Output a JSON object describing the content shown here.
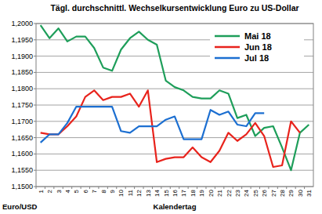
{
  "chart_data": {
    "type": "line",
    "title": "Tägl. durchschnittl. Wechselkursentwicklung Euro zu US-Dollar",
    "x_label": "Kalendertag",
    "y_label": "Euro/USD",
    "categories": [
      "1",
      "2",
      "3",
      "4",
      "5",
      "6",
      "7",
      "8",
      "9",
      "10",
      "11",
      "12",
      "13",
      "14",
      "15",
      "16",
      "17",
      "18",
      "19",
      "20",
      "21",
      "22",
      "23",
      "24",
      "25",
      "26",
      "27",
      "28",
      "29",
      "30",
      "31"
    ],
    "series": [
      {
        "name": "Mai 18",
        "color": "#1e9e5a",
        "values": [
          1.1995,
          1.1955,
          1.1985,
          1.1945,
          1.196,
          1.196,
          1.1925,
          1.1865,
          1.1855,
          1.192,
          1.1955,
          1.1975,
          1.195,
          1.1935,
          1.1825,
          1.1805,
          1.1795,
          1.1775,
          1.177,
          1.177,
          1.1795,
          1.1785,
          1.171,
          1.172,
          1.1655,
          1.168,
          1.1685,
          1.162,
          1.155,
          1.1665,
          1.169
        ]
      },
      {
        "name": "Jun 18",
        "color": "#e8231c",
        "values": [
          1.1665,
          1.166,
          1.166,
          1.1685,
          1.1715,
          1.1775,
          1.1795,
          1.1765,
          1.1775,
          1.1775,
          1.1785,
          1.1745,
          1.1795,
          1.1575,
          1.1585,
          1.159,
          1.159,
          1.162,
          1.159,
          1.1575,
          1.161,
          1.1665,
          1.164,
          1.166,
          1.1695,
          1.1655,
          1.156,
          1.1565,
          1.17,
          1.1665,
          null
        ]
      },
      {
        "name": "Jul 18",
        "color": "#1c6fd1",
        "values": [
          1.1635,
          1.166,
          1.166,
          1.1695,
          1.1745,
          1.1745,
          1.1745,
          1.1745,
          1.1745,
          1.167,
          1.1665,
          1.1685,
          1.1685,
          1.1685,
          1.1705,
          1.1715,
          1.1645,
          1.1645,
          1.1645,
          1.1735,
          1.172,
          1.173,
          1.169,
          1.1685,
          1.1725,
          1.1725,
          null,
          null,
          null,
          null,
          null
        ]
      }
    ],
    "ylim": [
      1.15,
      1.2
    ],
    "yticks": [
      {
        "value": 1.15,
        "label": "1,1500"
      },
      {
        "value": 1.155,
        "label": "1,1550"
      },
      {
        "value": 1.16,
        "label": "1,1600"
      },
      {
        "value": 1.165,
        "label": "1,1650"
      },
      {
        "value": 1.17,
        "label": "1,1700"
      },
      {
        "value": 1.175,
        "label": "1,1750"
      },
      {
        "value": 1.18,
        "label": "1,1800"
      },
      {
        "value": 1.185,
        "label": "1,1850"
      },
      {
        "value": 1.19,
        "label": "1,1900"
      },
      {
        "value": 1.195,
        "label": "1,1950"
      },
      {
        "value": 1.2,
        "label": "1,2000"
      }
    ],
    "grid": true,
    "legend": "upper right"
  }
}
